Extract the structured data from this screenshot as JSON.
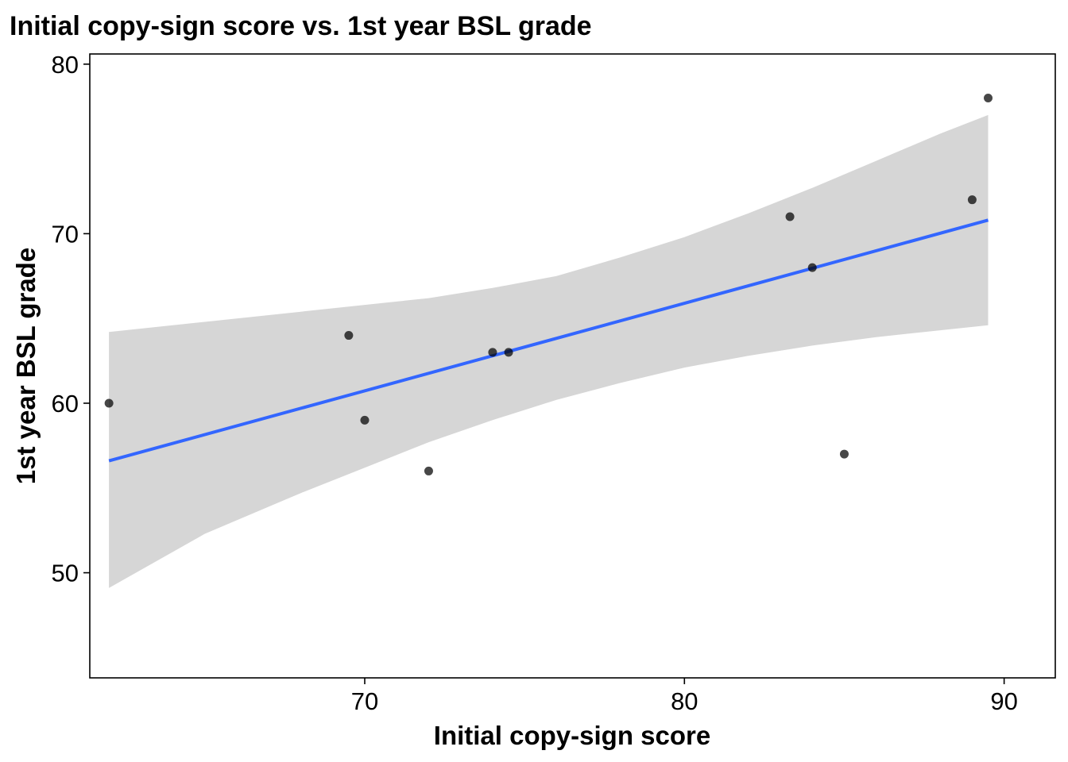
{
  "chart_data": {
    "type": "scatter",
    "title": "Initial copy-sign score vs. 1st year BSL grade",
    "xlabel": "Initial copy-sign score",
    "ylabel": "1st year BSL grade",
    "xlim": [
      61.4,
      91.6
    ],
    "ylim": [
      43.8,
      80.6
    ],
    "x_ticks": [
      70,
      80,
      90
    ],
    "y_ticks": [
      50,
      60,
      70,
      80
    ],
    "grid": false,
    "legend": "none",
    "points": [
      {
        "x": 62,
        "y": 60
      },
      {
        "x": 69.5,
        "y": 64
      },
      {
        "x": 70,
        "y": 59
      },
      {
        "x": 72,
        "y": 56
      },
      {
        "x": 74,
        "y": 63
      },
      {
        "x": 74.5,
        "y": 63
      },
      {
        "x": 83.3,
        "y": 71
      },
      {
        "x": 84,
        "y": 68
      },
      {
        "x": 85,
        "y": 57
      },
      {
        "x": 89,
        "y": 72
      },
      {
        "x": 89.5,
        "y": 78
      }
    ],
    "fit_line": {
      "method": "linear",
      "x": [
        62,
        89.5
      ],
      "y": [
        56.6,
        70.8
      ]
    },
    "confidence_band": {
      "x": [
        62,
        65,
        68,
        70,
        72,
        74,
        76,
        78,
        80,
        82,
        84,
        86,
        88,
        89.5
      ],
      "lower": [
        49.1,
        52.3,
        54.7,
        56.2,
        57.7,
        59.0,
        60.2,
        61.2,
        62.1,
        62.8,
        63.4,
        63.9,
        64.3,
        64.6
      ],
      "upper": [
        64.2,
        64.8,
        65.4,
        65.8,
        66.2,
        66.8,
        67.5,
        68.6,
        69.8,
        71.2,
        72.7,
        74.3,
        75.9,
        77.0
      ]
    },
    "colors": {
      "points": "#000000",
      "fit_line": "#3366FF",
      "confidence_band": "#d6d6d6",
      "panel_border": "#000000"
    }
  }
}
